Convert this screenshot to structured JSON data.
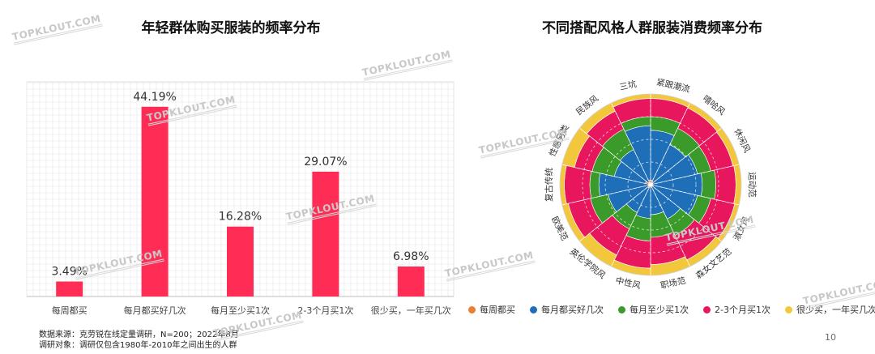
{
  "watermark": "TOPKLOUT.COM",
  "page_number": "10",
  "colors": {
    "bar": "#ff2d55",
    "every_week": "#ed7d31",
    "several_month": "#1f6fb8",
    "once_month": "#3a9a2a",
    "two_three_month": "#e8175d",
    "rarely": "#f3c73c"
  },
  "chart_data": [
    {
      "type": "bar",
      "title": "年轻群体购买服装的频率分布",
      "categories": [
        "每周都买",
        "每月都买好几次",
        "每月至少买1次",
        "2-3个月买1次",
        "很少买，一年买几次"
      ],
      "values": [
        3.49,
        44.19,
        16.28,
        29.07,
        6.98
      ],
      "value_labels": [
        "3.49%",
        "44.19%",
        "16.28%",
        "29.07%",
        "6.98%"
      ],
      "ylim": [
        0,
        50
      ],
      "grid": true
    },
    {
      "type": "nightingale",
      "title": "不同搭配风格人群服装消费频率分布",
      "categories": [
        "紧跟潮流",
        "嘻哈风",
        "休闲风",
        "运动范",
        "淑女风",
        "森女文艺范",
        "职场范",
        "中性风",
        "英伦学院风",
        "欧美范",
        "复古传统",
        "性感另类",
        "民族风",
        "三坑"
      ],
      "series": [
        {
          "name": "每周都买",
          "values": [
            0.05,
            0.04,
            0.03,
            0.02,
            0.03,
            0.02,
            0.03,
            0.02,
            0.04,
            0.03,
            0.02,
            0.06,
            0.03,
            0.05
          ]
        },
        {
          "name": "每月都买好几次",
          "values": [
            0.55,
            0.45,
            0.5,
            0.55,
            0.5,
            0.4,
            0.3,
            0.35,
            0.3,
            0.45,
            0.55,
            0.35,
            0.4,
            0.6
          ]
        },
        {
          "name": "每月至少买1次",
          "values": [
            0.15,
            0.2,
            0.15,
            0.15,
            0.15,
            0.2,
            0.25,
            0.25,
            0.2,
            0.2,
            0.1,
            0.25,
            0.25,
            0.1
          ]
        },
        {
          "name": "2-3个月买1次",
          "values": [
            0.2,
            0.25,
            0.25,
            0.22,
            0.27,
            0.3,
            0.3,
            0.3,
            0.32,
            0.25,
            0.28,
            0.2,
            0.22,
            0.2
          ]
        },
        {
          "name": "很少买，一年买几次",
          "values": [
            0.05,
            0.06,
            0.07,
            0.06,
            0.05,
            0.08,
            0.12,
            0.08,
            0.14,
            0.07,
            0.05,
            0.14,
            0.1,
            0.05
          ]
        }
      ],
      "legend_position": "bottom"
    }
  ],
  "source_line": "数据来源：克劳锐在线定量调研，N=200；2022年8月",
  "subject_line": "调研对象：调研仅包含1980年-2010年之间出生的人群"
}
